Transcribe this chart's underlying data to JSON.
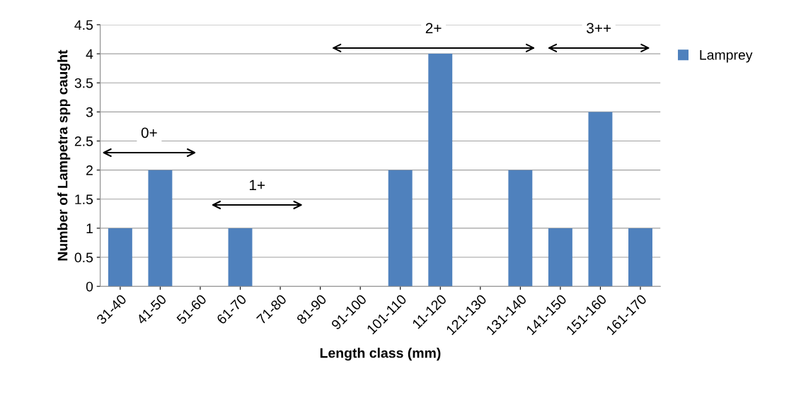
{
  "chart_data": {
    "type": "bar",
    "categories": [
      "31-40",
      "41-50",
      "51-60",
      "61-70",
      "71-80",
      "81-90",
      "91-100",
      "101-110",
      "11-120",
      "121-130",
      "131-140",
      "141-150",
      "151-160",
      "161-170"
    ],
    "series": [
      {
        "name": "Lamprey",
        "color": "#4f81bd",
        "values": [
          1,
          2,
          0,
          1,
          0,
          0,
          0,
          2,
          4,
          0,
          2,
          1,
          3,
          1
        ]
      }
    ],
    "xlabel": "Length class (mm)",
    "ylabel": "Number of Lampetra spp caught",
    "ylim": [
      0,
      4.5
    ],
    "yticks": [
      0,
      0.5,
      1,
      1.5,
      2,
      2.5,
      3,
      3.5,
      4,
      4.5
    ],
    "grid": "y",
    "legend": "right",
    "annotations": [
      "0+",
      "1+",
      "2+",
      "3++"
    ]
  }
}
